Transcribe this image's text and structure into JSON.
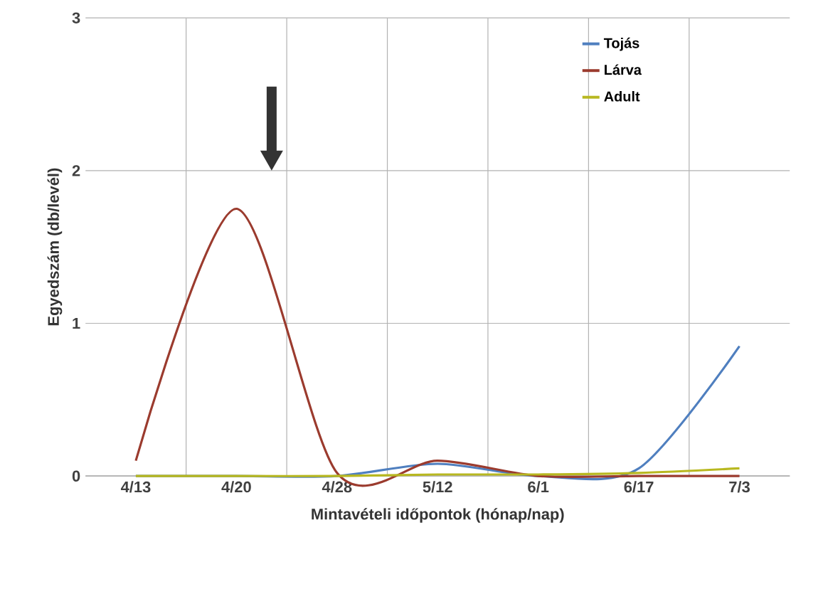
{
  "chart_data": {
    "type": "line",
    "xlabel": "Mintavételi időpontok (hónap/nap)",
    "ylabel": "Egyedszám (db/levél)",
    "categories": [
      "4/13",
      "4/20",
      "4/28",
      "5/12",
      "6/1",
      "6/17",
      "7/3"
    ],
    "series": [
      {
        "name": "Tojás",
        "color": "#4f7fbf",
        "values": [
          0,
          0,
          0,
          0.08,
          0,
          0.05,
          0.85
        ]
      },
      {
        "name": "Lárva",
        "color": "#9b3b2e",
        "values": [
          0.1,
          1.75,
          0.02,
          0.1,
          0,
          0,
          0
        ]
      },
      {
        "name": "Adult",
        "color": "#b8b820",
        "values": [
          0,
          0,
          0,
          0.01,
          0.01,
          0.02,
          0.05
        ]
      }
    ],
    "ylim": [
      0,
      3
    ],
    "yticks": [
      0,
      1,
      2,
      3
    ],
    "grid": true,
    "legend": "top right",
    "marker": "none",
    "line_style": "solid"
  }
}
